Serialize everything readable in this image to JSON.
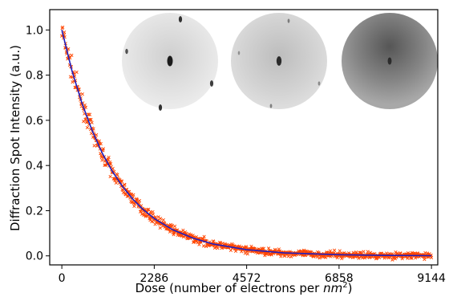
{
  "chart_data": {
    "type": "scatter",
    "title": "",
    "xlabel": "Dose (number of electrons per ",
    "xlabel_math": "nm",
    "xlabel_sup": "2",
    "xlabel_close": ")",
    "ylabel": "Diffraction Spot Intensity (a.u.)",
    "xlim": [
      -300,
      9300
    ],
    "ylim": [
      -0.04,
      1.09
    ],
    "x_ticks": [
      0,
      2286,
      4572,
      6858,
      9144
    ],
    "x_tick_labels": [
      "0",
      "2286",
      "4572",
      "6858",
      "9144"
    ],
    "y_ticks": [
      0.0,
      0.2,
      0.4,
      0.6,
      0.8,
      1.0
    ],
    "y_tick_labels": [
      "0.0",
      "0.2",
      "0.4",
      "0.6",
      "0.8",
      "1.0"
    ],
    "grid": false,
    "series": [
      {
        "kind": "scatter",
        "marker": "x",
        "color": "#ff4500",
        "x_range": [
          0,
          9144
        ],
        "point_count": 900,
        "model": "exponential decay",
        "amplitude": 1.0,
        "decay_dose": 1270,
        "noise_amplitude": 0.02
      },
      {
        "kind": "line",
        "color": "#1f1fbf",
        "x": [
          0,
          250,
          500,
          750,
          1000,
          1250,
          1500,
          1750,
          2000,
          2286,
          2750,
          3250,
          3750,
          4572,
          5500,
          6858,
          8000,
          9144
        ],
        "y": [
          1.0,
          0.82,
          0.675,
          0.555,
          0.455,
          0.374,
          0.307,
          0.252,
          0.207,
          0.165,
          0.115,
          0.078,
          0.052,
          0.027,
          0.013,
          0.005,
          0.002,
          0.001
        ]
      }
    ],
    "insets": [
      {
        "name": "diffraction-pattern-low-dose",
        "background": "#e4e4e4",
        "spots": "strong"
      },
      {
        "name": "diffraction-pattern-mid-dose",
        "background": "#d2d2d2",
        "spots": "medium"
      },
      {
        "name": "diffraction-pattern-high-dose",
        "background": "#8c8c8c",
        "spots": "weak"
      }
    ]
  }
}
